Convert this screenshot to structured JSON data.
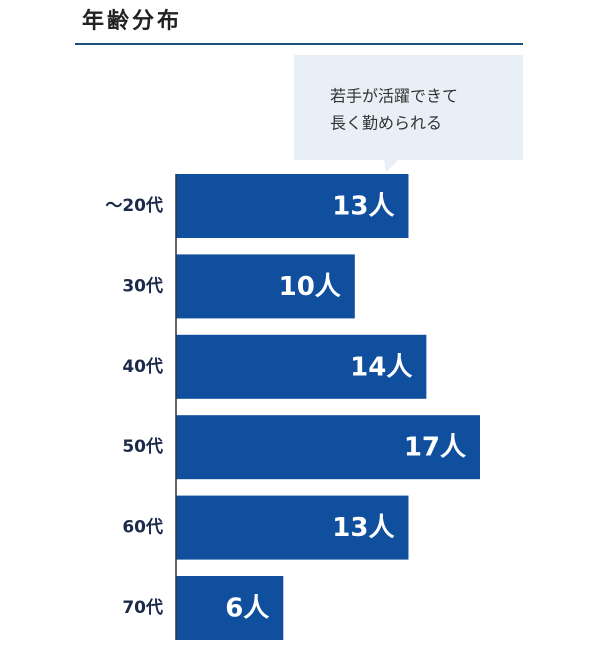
{
  "chart_data": {
    "type": "hbar",
    "title": "年齢分布",
    "annotation": [
      "若手が活躍できて",
      "長く勤められる"
    ],
    "categories": [
      "～20代",
      "30代",
      "40代",
      "50代",
      "60代",
      "70代"
    ],
    "values": [
      13,
      10,
      14,
      17,
      13,
      6
    ],
    "value_labels": [
      "13人",
      "10人",
      "14人",
      "17人",
      "13人",
      "6人"
    ],
    "color": "#0f4f9e"
  }
}
